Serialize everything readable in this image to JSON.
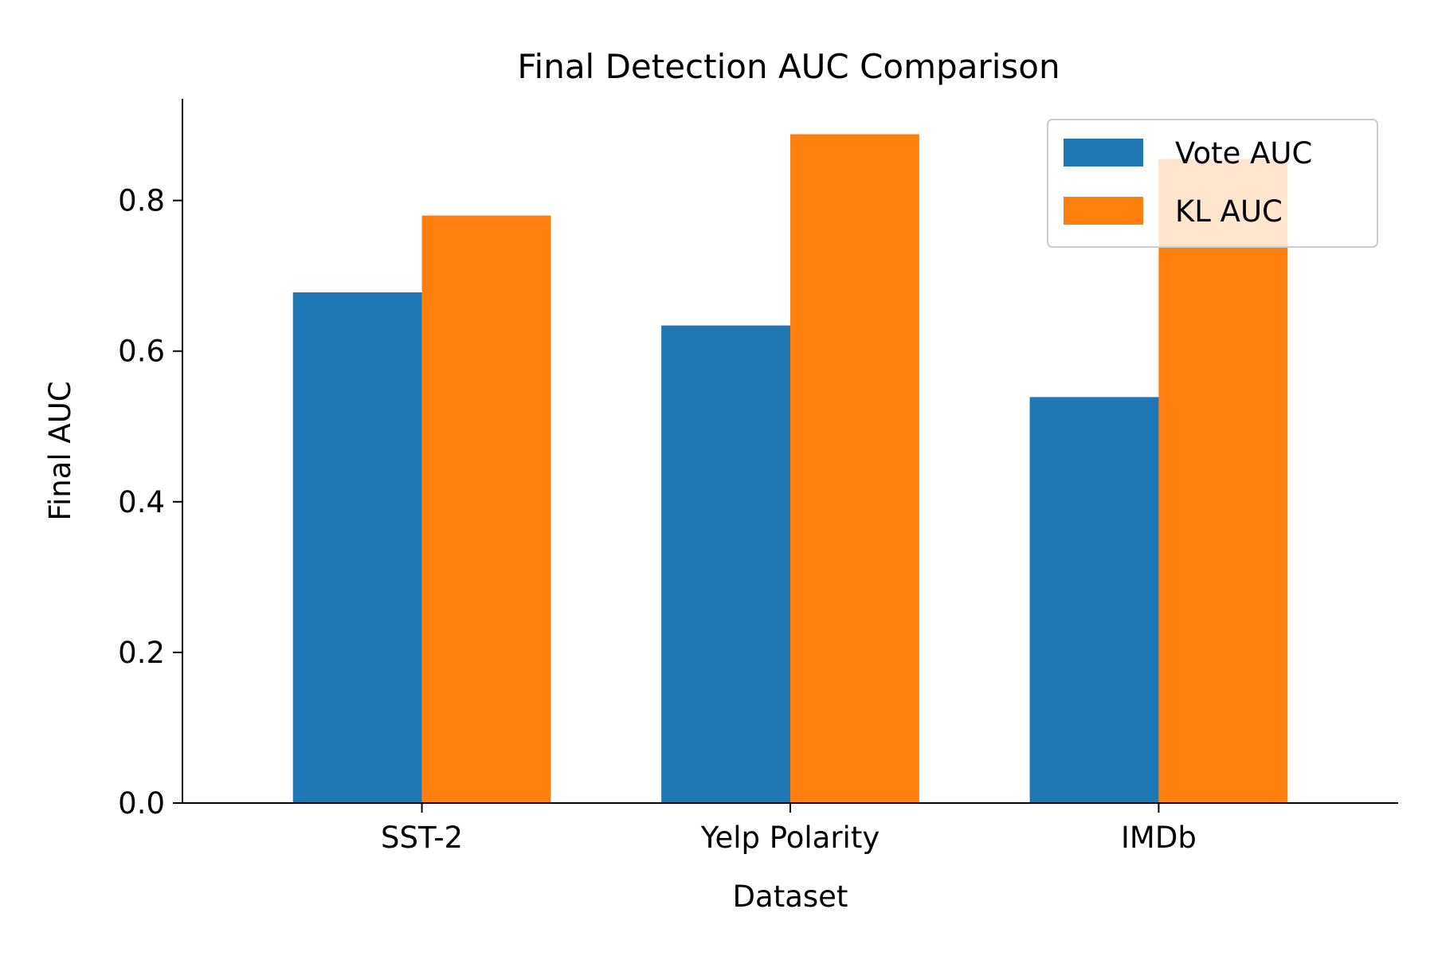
{
  "chart_data": {
    "type": "bar",
    "title": "Final Detection AUC Comparison",
    "xlabel": "Dataset",
    "ylabel": "Final AUC",
    "categories": [
      "SST-2",
      "Yelp Polarity",
      "IMDb"
    ],
    "series": [
      {
        "name": "Vote AUC",
        "color": "#1f77b4",
        "values": [
          0.678,
          0.634,
          0.539
        ]
      },
      {
        "name": "KL AUC",
        "color": "#ff7f0e",
        "values": [
          0.78,
          0.888,
          0.855
        ]
      }
    ],
    "ylim": [
      0,
      0.935
    ],
    "yticks": [
      {
        "value": 0.0,
        "label": "0.0"
      },
      {
        "value": 0.2,
        "label": "0.2"
      },
      {
        "value": 0.4,
        "label": "0.4"
      },
      {
        "value": 0.6,
        "label": "0.6"
      },
      {
        "value": 0.8,
        "label": "0.8"
      }
    ],
    "grid": false,
    "legend_position": "top-right"
  }
}
